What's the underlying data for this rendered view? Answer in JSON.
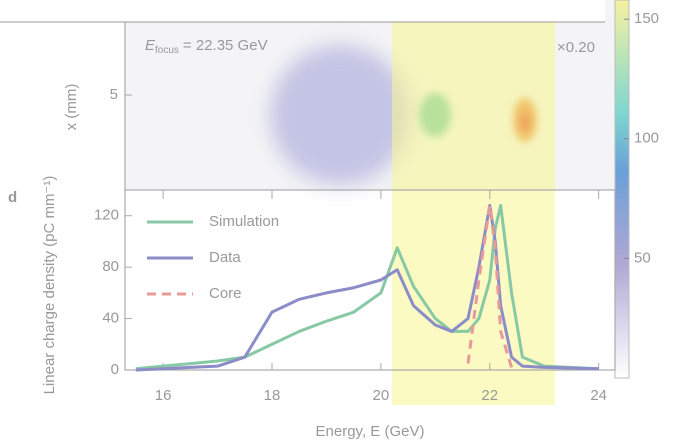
{
  "chart_data": [
    {
      "type": "image",
      "annotation": {
        "symbol": "E",
        "subscript": "focus",
        "text": "= 22.35 GeV"
      },
      "scale_label": "×0.20",
      "ylabel": "x (mm)",
      "ylim": [
        0,
        10
      ],
      "yticks": [
        5
      ],
      "colorbar": {
        "lim": [
          0,
          158
        ],
        "ticks": [
          50,
          100,
          150
        ]
      }
    },
    {
      "type": "line",
      "panel_label": "d",
      "xlabel": "Energy, E (GeV)",
      "ylabel": "Linear charge density (pC mm⁻¹)",
      "x": [
        15.5,
        16,
        16.5,
        17,
        17.5,
        18,
        18.5,
        19,
        19.5,
        20,
        20.3,
        20.6,
        21,
        21.3,
        21.6,
        21.8,
        22,
        22.1,
        22.2,
        22.4,
        22.6,
        23,
        24
      ],
      "series": [
        {
          "name": "Simulation",
          "color": "#86c9a4",
          "dash": false,
          "values": [
            1,
            3,
            5,
            7,
            10,
            20,
            30,
            38,
            45,
            60,
            95,
            65,
            40,
            30,
            30,
            40,
            70,
            110,
            128,
            60,
            10,
            3,
            1
          ]
        },
        {
          "name": "Data",
          "color": "#8c8cc8",
          "dash": false,
          "values": [
            0,
            1,
            2,
            3,
            10,
            45,
            55,
            60,
            64,
            70,
            78,
            50,
            35,
            30,
            40,
            80,
            128,
            100,
            50,
            10,
            3,
            2,
            1
          ]
        },
        {
          "name": "Core",
          "color": "#e89a9a",
          "dash": true,
          "values": [
            null,
            null,
            null,
            null,
            null,
            null,
            null,
            null,
            null,
            null,
            null,
            null,
            null,
            null,
            5,
            70,
            128,
            95,
            30,
            2,
            null,
            null,
            null
          ]
        }
      ],
      "xlim": [
        15.3,
        24.3
      ],
      "xticks": [
        16,
        18,
        20,
        22,
        24
      ],
      "ylim": [
        0,
        140
      ],
      "yticks": [
        0,
        40,
        80,
        120
      ],
      "legend": "upper left"
    }
  ]
}
